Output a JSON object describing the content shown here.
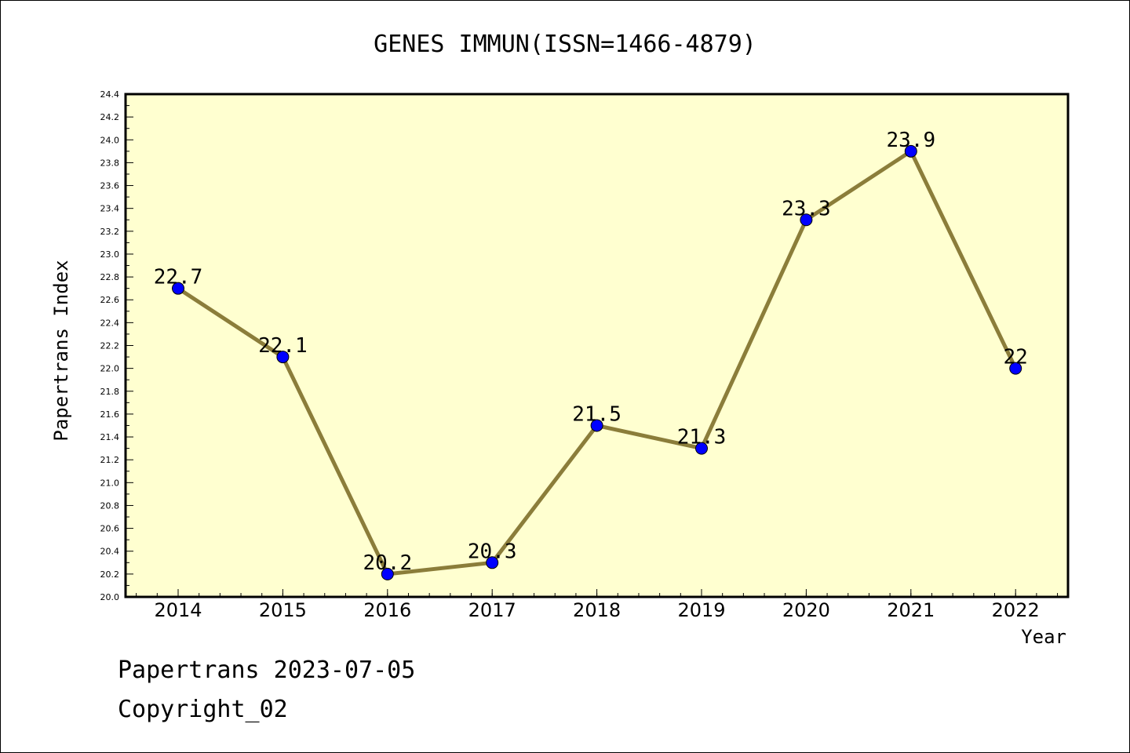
{
  "chart_data": {
    "type": "line",
    "title": "GENES IMMUN(ISSN=1466-4879)",
    "xlabel": "Year",
    "ylabel": "Papertrans Index",
    "categories": [
      "2014",
      "2015",
      "2016",
      "2017",
      "2018",
      "2019",
      "2020",
      "2021",
      "2022"
    ],
    "values": [
      22.7,
      22.1,
      20.2,
      20.3,
      21.5,
      21.3,
      23.3,
      23.9,
      22
    ],
    "value_labels": [
      "22.7",
      "22.1",
      "20.2",
      "20.3",
      "21.5",
      "21.3",
      "23.3",
      "23.9",
      "22"
    ],
    "ylim": [
      20.0,
      24.4
    ],
    "yticks": [
      "20.0",
      "20.2",
      "20.4",
      "20.6",
      "20.8",
      "21.0",
      "21.2",
      "21.4",
      "21.6",
      "21.8",
      "22.0",
      "22.2",
      "22.4",
      "22.6",
      "22.8",
      "23.0",
      "23.2",
      "23.4",
      "23.6",
      "23.8",
      "24.0",
      "24.2",
      "24.4"
    ],
    "grid": false,
    "colors": {
      "plot_background": "#ffffd0",
      "line": "#8b7d3a",
      "marker": "#0000ff"
    }
  },
  "footer": {
    "line1": "Papertrans 2023-07-05",
    "line2": "Copyright_02"
  }
}
